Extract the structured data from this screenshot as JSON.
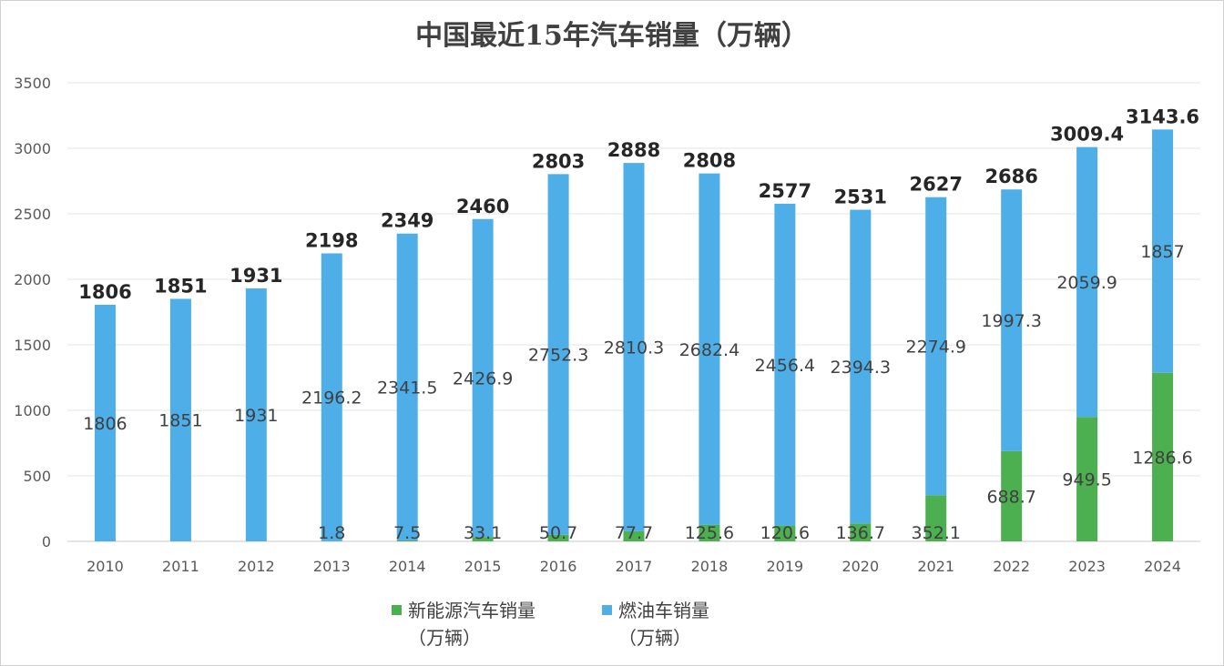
{
  "chart_data": {
    "type": "bar",
    "title": "中国最近15年汽车销量（万辆）",
    "categories": [
      "2010",
      "2011",
      "2012",
      "2013",
      "2014",
      "2015",
      "2016",
      "2017",
      "2018",
      "2019",
      "2020",
      "2021",
      "2022",
      "2023",
      "2024"
    ],
    "series": [
      {
        "name": "新能源汽车销量（万辆）",
        "color": "#4caf50",
        "values": [
          null,
          null,
          null,
          1.8,
          7.5,
          33.1,
          50.7,
          77.7,
          125.6,
          120.6,
          136.7,
          352.1,
          688.7,
          949.5,
          1286.6
        ]
      },
      {
        "name": "燃油车销量（万辆）",
        "color": "#4eaee8",
        "values": [
          1806,
          1851,
          1931,
          2196.2,
          2341.5,
          2426.9,
          2752.3,
          2810.3,
          2682.4,
          2456.4,
          2394.3,
          2274.9,
          1997.3,
          2059.9,
          1857
        ]
      }
    ],
    "totals": [
      1806,
      1851,
      1931,
      2198,
      2349,
      2460,
      2803,
      2888,
      2808,
      2577,
      2531,
      2627,
      2686,
      3009.4,
      3143.6
    ],
    "stacked": true,
    "ylim": [
      0,
      3500
    ],
    "yticks": [
      0,
      500,
      1000,
      1500,
      2000,
      2500,
      3000,
      3500
    ],
    "grid": true,
    "legend_position": "bottom"
  },
  "legend": {
    "items": [
      {
        "line1": "新能源汽车销量",
        "line2": "（万辆）",
        "color": "#4caf50"
      },
      {
        "line1": "燃油车销量",
        "line2": "（万辆）",
        "color": "#4eaee8"
      }
    ]
  }
}
